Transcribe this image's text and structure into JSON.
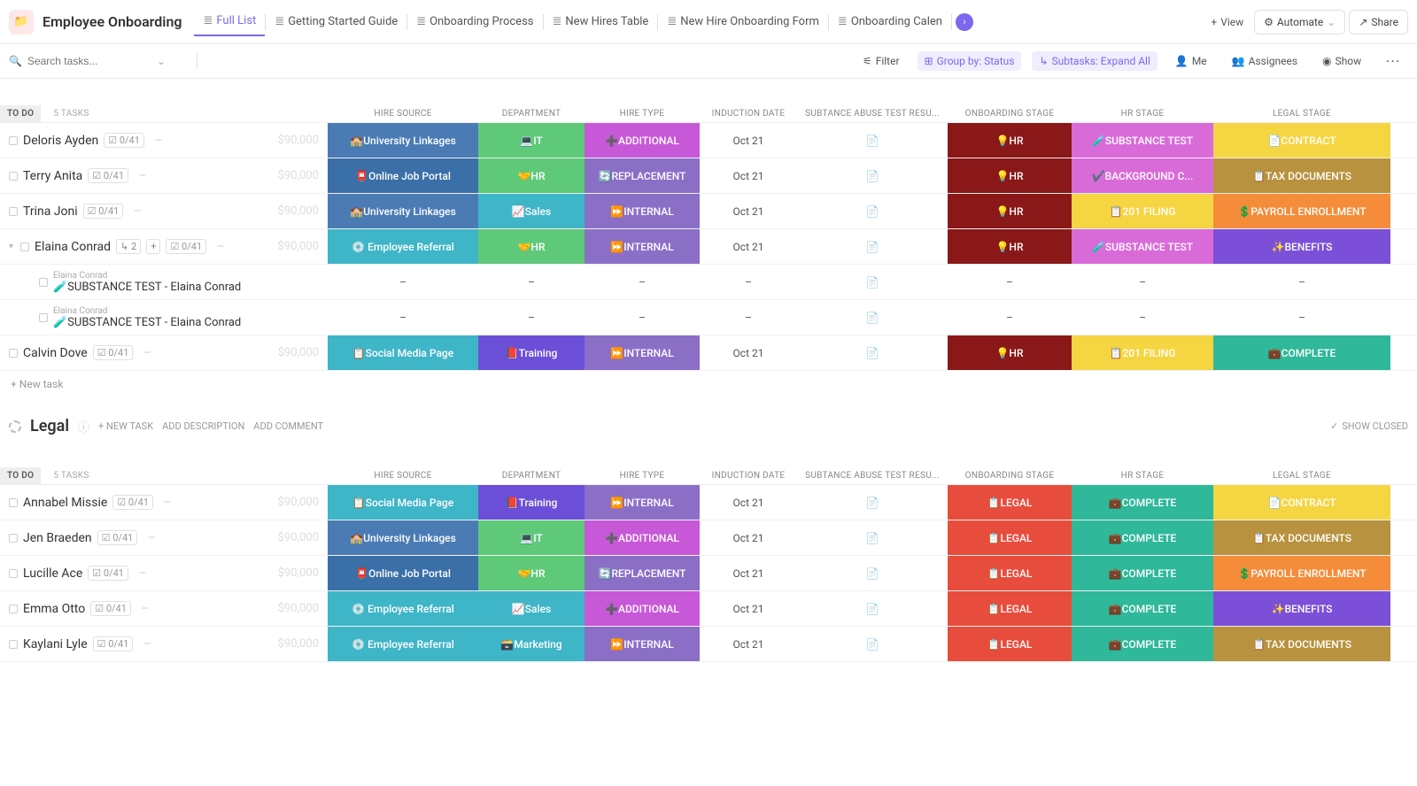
{
  "header": {
    "title": "Employee Onboarding",
    "tabs": [
      {
        "label": "Full List",
        "active": true
      },
      {
        "label": "Getting Started Guide"
      },
      {
        "label": "Onboarding Process"
      },
      {
        "label": "New Hires Table"
      },
      {
        "label": "New Hire Onboarding Form"
      },
      {
        "label": "Onboarding Calen"
      }
    ],
    "view_btn": "View",
    "automate_btn": "Automate",
    "share_btn": "Share"
  },
  "toolbar": {
    "search_placeholder": "Search tasks...",
    "filter": "Filter",
    "group_by": "Group by: Status",
    "subtasks": "Subtasks: Expand All",
    "me": "Me",
    "assignees": "Assignees",
    "show": "Show"
  },
  "columns": {
    "name": "",
    "hire_source": "HIRE SOURCE",
    "department": "DEPARTMENT",
    "hire_type": "HIRE TYPE",
    "induction": "INDUCTION DATE",
    "substance": "SUBTANCE ABUSE TEST RESU...",
    "onboarding": "ONBOARDING STAGE",
    "hr_stage": "HR STAGE",
    "legal_stage": "LEGAL STAGE"
  },
  "status_labels": {
    "todo": "TO DO",
    "tasks5": "5 TASKS",
    "new_task": "+ New task"
  },
  "group2": {
    "title": "Legal",
    "new_task": "+ NEW TASK",
    "add_desc": "ADD DESCRIPTION",
    "add_comment": "ADD COMMENT",
    "show_closed": "SHOW CLOSED"
  },
  "cell_values": {
    "univ": "🏫University Linkages",
    "portal": "📮Online Job Portal",
    "referral": "💿 Employee Referral",
    "social": "📋Social Media Page",
    "it": "💻IT",
    "hr": "🤝HR",
    "sales": "📈Sales",
    "training": "📕Training",
    "marketing": "🗃️Marketing",
    "additional": "➕ADDITIONAL",
    "replacement": "🔄REPLACEMENT",
    "internal": "⏩INTERNAL",
    "oct21": "Oct 21",
    "hr_stage": "💡HR",
    "legal_stage": "📋LEGAL",
    "subtest": "🧪SUBSTANCE TEST",
    "bgcheck": "✔️BACKGROUND C...",
    "filing201": "📋201 FILING",
    "complete": "💼COMPLETE",
    "contract": "📄CONTRACT",
    "taxdocs": "📋TAX DOCUMENTS",
    "payroll": "💲PAYROLL ENROLLMENT",
    "benefits": "✨BENEFITS",
    "dash": "–"
  },
  "colors": {
    "univ": "#4a7bb5",
    "portal": "#3a6fa8",
    "referral": "#3fb5c8",
    "social": "#3fb5c8",
    "it": "#5fc97a",
    "hr_dept": "#5fc97a",
    "sales": "#3fb5c8",
    "training": "#6c4fd8",
    "marketing": "#3fb5c8",
    "additional": "#c758d8",
    "replacement": "#8b6fc7",
    "internal": "#8b6fc7",
    "hr_onb": "#8a1818",
    "legal_onb": "#e84c3d",
    "subtest": "#d96bd9",
    "bgcheck": "#d96bd9",
    "filing201": "#f5d542",
    "complete_hr": "#2fb89a",
    "contract": "#f5d542",
    "taxdocs": "#b8923f",
    "payroll": "#f58c3a",
    "benefits": "#7b4fd8",
    "complete_leg": "#2fb89a"
  },
  "rows1": [
    {
      "name": "Deloris Ayden",
      "prog": "0/41",
      "amt": "$90,000",
      "hs": "univ",
      "dept": "it",
      "ht": "additional",
      "ind": "oct21",
      "onb": "hr_stage",
      "onb_c": "hr_onb",
      "hrs": "subtest",
      "hrs_c": "subtest",
      "leg": "contract",
      "leg_c": "contract"
    },
    {
      "name": "Terry Anita",
      "prog": "0/41",
      "amt": "$90,000",
      "hs": "portal",
      "dept": "hr",
      "ht": "replacement",
      "ind": "oct21",
      "onb": "hr_stage",
      "onb_c": "hr_onb",
      "hrs": "bgcheck",
      "hrs_c": "bgcheck",
      "leg": "taxdocs",
      "leg_c": "taxdocs"
    },
    {
      "name": "Trina Joni",
      "prog": "0/41",
      "amt": "$90,000",
      "hs": "univ",
      "dept": "sales",
      "ht": "internal",
      "ind": "oct21",
      "onb": "hr_stage",
      "onb_c": "hr_onb",
      "hrs": "filing201",
      "hrs_c": "filing201",
      "leg": "payroll",
      "leg_c": "payroll"
    },
    {
      "name": "Elaina Conrad",
      "prog": "0/41",
      "amt": "$90,000",
      "hs": "referral",
      "dept": "hr",
      "ht": "internal",
      "ind": "oct21",
      "onb": "hr_stage",
      "onb_c": "hr_onb",
      "hrs": "subtest",
      "hrs_c": "subtest",
      "leg": "benefits",
      "leg_c": "benefits",
      "subcount": "2",
      "expand": true,
      "subs": [
        {
          "parent": "Elaina Conrad",
          "title": "🧪SUBSTANCE TEST - Elaina Conrad"
        },
        {
          "parent": "Elaina Conrad",
          "title": "🧪SUBSTANCE TEST - Elaina Conrad"
        }
      ]
    },
    {
      "name": "Calvin Dove",
      "prog": "0/41",
      "amt": "$90,000",
      "hs": "social",
      "dept": "training",
      "ht": "internal",
      "ind": "oct21",
      "onb": "hr_stage",
      "onb_c": "hr_onb",
      "hrs": "filing201",
      "hrs_c": "filing201",
      "leg": "complete",
      "leg_c": "complete_leg"
    }
  ],
  "rows2": [
    {
      "name": "Annabel Missie",
      "prog": "0/41",
      "amt": "$90,000",
      "hs": "social",
      "dept": "training",
      "ht": "internal",
      "ind": "oct21",
      "onb": "legal_stage",
      "onb_c": "legal_onb",
      "hrs": "complete",
      "hrs_c": "complete_hr",
      "leg": "contract",
      "leg_c": "contract"
    },
    {
      "name": "Jen Braeden",
      "prog": "0/41",
      "amt": "$90,000",
      "hs": "univ",
      "dept": "it",
      "ht": "additional",
      "ind": "oct21",
      "onb": "legal_stage",
      "onb_c": "legal_onb",
      "hrs": "complete",
      "hrs_c": "complete_hr",
      "leg": "taxdocs",
      "leg_c": "taxdocs"
    },
    {
      "name": "Lucille Ace",
      "prog": "0/41",
      "amt": "$90,000",
      "hs": "portal",
      "dept": "hr",
      "ht": "replacement",
      "ind": "oct21",
      "onb": "legal_stage",
      "onb_c": "legal_onb",
      "hrs": "complete",
      "hrs_c": "complete_hr",
      "leg": "payroll",
      "leg_c": "payroll"
    },
    {
      "name": "Emma Otto",
      "prog": "0/41",
      "amt": "$90,000",
      "hs": "referral",
      "dept": "sales",
      "ht": "additional",
      "ind": "oct21",
      "onb": "legal_stage",
      "onb_c": "legal_onb",
      "hrs": "complete",
      "hrs_c": "complete_hr",
      "leg": "benefits",
      "leg_c": "benefits"
    },
    {
      "name": "Kaylani Lyle",
      "prog": "0/41",
      "amt": "$90,000",
      "hs": "referral",
      "dept": "marketing",
      "ht": "internal",
      "ind": "oct21",
      "onb": "legal_stage",
      "onb_c": "legal_onb",
      "hrs": "complete",
      "hrs_c": "complete_hr",
      "leg": "taxdocs",
      "leg_c": "taxdocs"
    }
  ]
}
